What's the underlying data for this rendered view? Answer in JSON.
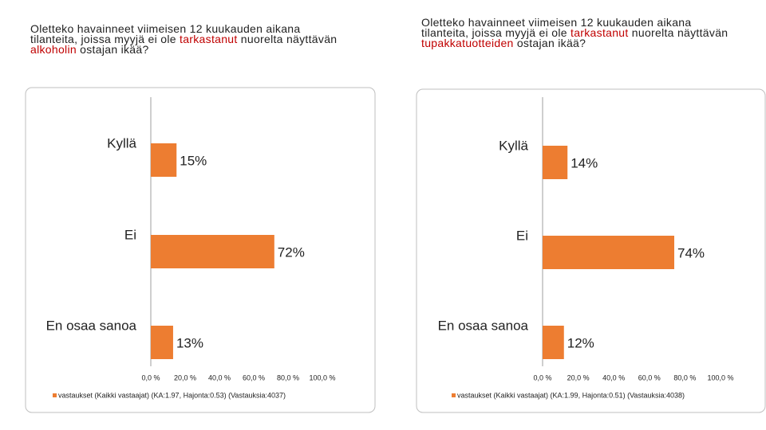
{
  "chart_data": [
    {
      "type": "hbar",
      "title": [
        "Oletteko havainneet viimeisen 12 kuukauden aikana tilanteita, joissa myyjä ei ole ",
        "tarkastanut",
        " nuorelta näyttävän ",
        "alkoholin",
        " ostajan ikää?"
      ],
      "title_highlight_color": "#c00000",
      "categories": [
        "Kyllä",
        "Ei",
        "En osaa sanoa"
      ],
      "series": [
        {
          "name": "vastaukset (Kaikki vastaajat) (KA:1.97, Hajonta:0.53) (Vastauksia:4037)",
          "color": "#ed7d31",
          "values": [
            15,
            72,
            13
          ],
          "value_labels": [
            "15%",
            "72%",
            "13%"
          ]
        }
      ],
      "xlim": [
        0,
        100
      ],
      "xticks": [
        {
          "value": 0,
          "label": "0,0 %"
        },
        {
          "value": 20,
          "label": "20,0 %"
        },
        {
          "value": 40,
          "label": "40,0 %"
        },
        {
          "value": 60,
          "label": "60,0 %"
        },
        {
          "value": 80,
          "label": "80,0 %"
        },
        {
          "value": 100,
          "label": "100,0 %"
        }
      ],
      "legend": "bottom"
    },
    {
      "type": "hbar",
      "title": [
        "Oletteko havainneet viimeisen 12 kuukauden aikana tilanteita, joissa myyjä ei ole ",
        "tarkastanut",
        " nuorelta näyttävän ",
        "tupakkatuotteiden",
        " ostajan ikää?"
      ],
      "title_highlight_color": "#c00000",
      "categories": [
        "Kyllä",
        "Ei",
        "En osaa sanoa"
      ],
      "series": [
        {
          "name": "vastaukset (Kaikki vastaajat) (KA:1.99, Hajonta:0.51) (Vastauksia:4038)",
          "color": "#ed7d31",
          "values": [
            14,
            74,
            12
          ],
          "value_labels": [
            "14%",
            "74%",
            "12%"
          ]
        }
      ],
      "xlim": [
        0,
        100
      ],
      "xticks": [
        {
          "value": 0,
          "label": "0,0 %"
        },
        {
          "value": 20,
          "label": "20,0 %"
        },
        {
          "value": 40,
          "label": "40,0 %"
        },
        {
          "value": 60,
          "label": "60,0 %"
        },
        {
          "value": 80,
          "label": "80,0 %"
        },
        {
          "value": 100,
          "label": "100,0 %"
        }
      ],
      "legend": "bottom"
    }
  ]
}
